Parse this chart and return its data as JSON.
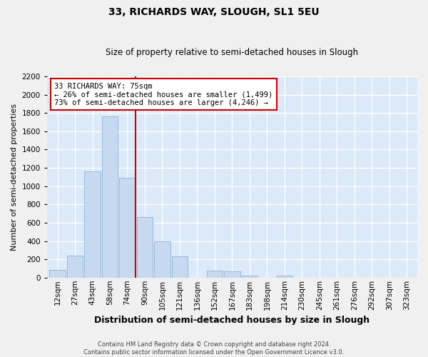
{
  "title": "33, RICHARDS WAY, SLOUGH, SL1 5EU",
  "subtitle": "Size of property relative to semi-detached houses in Slough",
  "xlabel": "Distribution of semi-detached houses by size in Slough",
  "ylabel": "Number of semi-detached properties",
  "property_label": "33 RICHARDS WAY: 75sqm",
  "pct_smaller": 26,
  "pct_larger": 73,
  "n_smaller": 1499,
  "n_larger": 4246,
  "bin_labels": [
    "12sqm",
    "27sqm",
    "43sqm",
    "58sqm",
    "74sqm",
    "90sqm",
    "105sqm",
    "121sqm",
    "136sqm",
    "152sqm",
    "167sqm",
    "183sqm",
    "198sqm",
    "214sqm",
    "230sqm",
    "245sqm",
    "261sqm",
    "276sqm",
    "292sqm",
    "307sqm",
    "323sqm"
  ],
  "bar_values": [
    85,
    240,
    1160,
    1760,
    1090,
    660,
    400,
    230,
    0,
    80,
    65,
    25,
    0,
    20,
    0,
    0,
    0,
    0,
    0,
    0,
    0
  ],
  "vline_index": 4,
  "bar_color": "#c6d9f0",
  "bar_edge_color": "#8ab4d4",
  "vline_color": "#cc0000",
  "annotation_box_color": "#cc0000",
  "plot_bg_color": "#dce9f8",
  "grid_color": "#ffffff",
  "fig_bg_color": "#f0f0f0",
  "ylim": [
    0,
    2200
  ],
  "yticks": [
    0,
    200,
    400,
    600,
    800,
    1000,
    1200,
    1400,
    1600,
    1800,
    2000,
    2200
  ],
  "title_fontsize": 10,
  "subtitle_fontsize": 8.5,
  "ylabel_fontsize": 8,
  "xlabel_fontsize": 9,
  "tick_fontsize": 7.5,
  "ann_fontsize": 7.5,
  "footer_line1": "Contains HM Land Registry data © Crown copyright and database right 2024.",
  "footer_line2": "Contains public sector information licensed under the Open Government Licence v3.0."
}
